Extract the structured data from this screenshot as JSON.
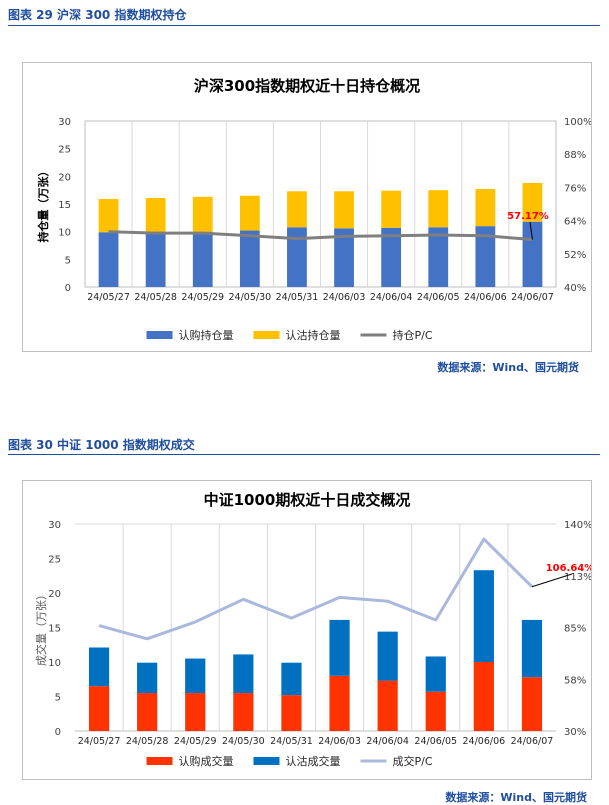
{
  "figures": [
    {
      "caption": "图表 29  沪深 300 指数期权持仓",
      "source": "数据来源：Wind、国元期货"
    },
    {
      "caption": "图表 30  中证 1000 指数期权成交",
      "source": "数据来源：Wind、国元期货"
    }
  ],
  "chart_data": [
    {
      "type": "bar",
      "stacked": true,
      "title": "沪深300指数期权近十日持仓概况",
      "ylabel": "持仓量（万张）",
      "ylim": [
        0,
        30
      ],
      "yticks": [
        0,
        5,
        10,
        15,
        20,
        25,
        30
      ],
      "y2ticks": [
        "40%",
        "52%",
        "64%",
        "76%",
        "88%",
        "100%"
      ],
      "y2lim": [
        0.4,
        1.0
      ],
      "categories": [
        "24/05/27",
        "24/05/28",
        "24/05/29",
        "24/05/30",
        "24/05/31",
        "24/06/03",
        "24/06/04",
        "24/06/05",
        "24/06/06",
        "24/06/07"
      ],
      "series": [
        {
          "name": "认购持仓量",
          "kind": "bar",
          "color": "#4472c4",
          "values": [
            9.9,
            10.0,
            10.0,
            10.2,
            10.8,
            10.6,
            10.7,
            10.8,
            11.0,
            11.8
          ]
        },
        {
          "name": "认沽持仓量",
          "kind": "bar",
          "color": "#ffc000",
          "values": [
            6.0,
            6.1,
            6.3,
            6.3,
            6.5,
            6.7,
            6.7,
            6.7,
            6.7,
            7.0
          ]
        },
        {
          "name": "持仓P/C",
          "kind": "line",
          "axis": "right",
          "color": "#7f7f7f",
          "values": [
            0.6,
            0.595,
            0.595,
            0.585,
            0.575,
            0.583,
            0.585,
            0.588,
            0.585,
            0.5717
          ]
        }
      ],
      "annotation": "57.17%",
      "grid": "vertical",
      "legend": "bottom"
    },
    {
      "type": "bar",
      "stacked": true,
      "title": "中证1000期权近十日成交概况",
      "ylabel": "成交量（万张）",
      "ylim": [
        0,
        30
      ],
      "yticks": [
        0,
        5,
        10,
        15,
        20,
        25,
        30
      ],
      "y2ticks": [
        "30%",
        "58%",
        "85%",
        "113%",
        "140%"
      ],
      "y2lim": [
        0.3,
        1.4
      ],
      "categories": [
        "24/05/27",
        "24/05/28",
        "24/05/29",
        "24/05/30",
        "24/05/31",
        "24/06/03",
        "24/06/04",
        "24/06/05",
        "24/06/06",
        "24/06/07"
      ],
      "series": [
        {
          "name": "认购成交量",
          "kind": "bar",
          "color": "#ff3300",
          "values": [
            6.5,
            5.5,
            5.5,
            5.5,
            5.2,
            8.0,
            7.3,
            5.7,
            10.0,
            7.8
          ]
        },
        {
          "name": "认沽成交量",
          "kind": "bar",
          "color": "#0070c0",
          "values": [
            5.6,
            4.4,
            5.0,
            5.6,
            4.7,
            8.1,
            7.1,
            5.1,
            13.3,
            8.3
          ]
        },
        {
          "name": "成交P/C",
          "kind": "line",
          "axis": "right",
          "color": "#a9b8dc",
          "values": [
            0.86,
            0.79,
            0.88,
            1.0,
            0.9,
            1.01,
            0.99,
            0.89,
            1.32,
            1.0664
          ]
        }
      ],
      "annotation": "106.64%",
      "grid": "vertical",
      "legend": "bottom"
    }
  ]
}
